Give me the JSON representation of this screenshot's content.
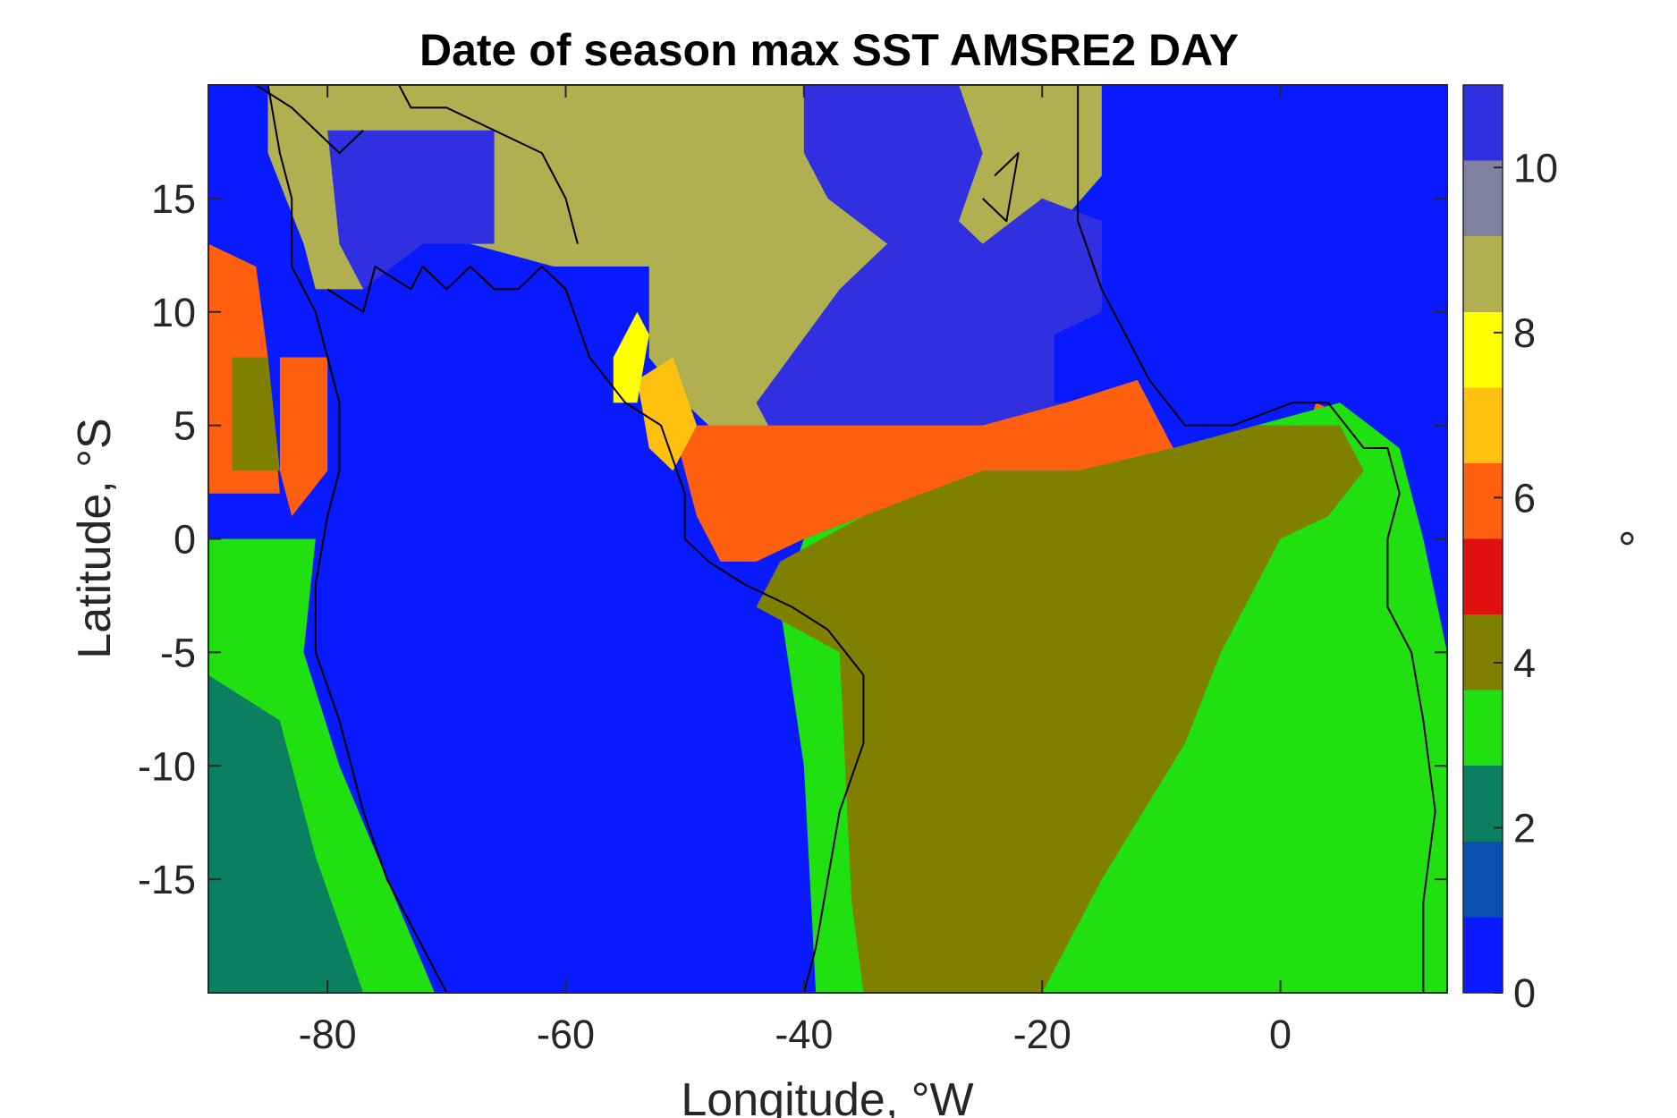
{
  "chart_data": {
    "type": "heatmap",
    "title": "Date of season max SST AMSRE2 DAY",
    "xlabel": "Longitude, °W",
    "ylabel": "Latitude, °S",
    "colorbar_label": "°",
    "xlim": [
      -90,
      14
    ],
    "ylim": [
      -20,
      20
    ],
    "clim": [
      0,
      11
    ],
    "x_ticks": [
      -80,
      -60,
      -40,
      -20,
      0
    ],
    "x_tick_labels": [
      "-80",
      "-60",
      "-40",
      "-20",
      "0"
    ],
    "y_ticks": [
      -15,
      -10,
      -5,
      0,
      5,
      10,
      15
    ],
    "y_tick_labels": [
      "-15",
      "-10",
      "-5",
      "0",
      "5",
      "10",
      "15"
    ],
    "colorbar_ticks": [
      0,
      2,
      4,
      6,
      8,
      10
    ],
    "colorbar_tick_labels": [
      "0",
      "2",
      "4",
      "6",
      "8",
      "10"
    ],
    "colormap": [
      "#0a1aff",
      "#0b4fb3",
      "#0a8060",
      "#20e010",
      "#808000",
      "#e01010",
      "#ff6010",
      "#ffc010",
      "#ffff00",
      "#b0b050",
      "#8080a0",
      "#3030e0"
    ],
    "land_value": 0.9,
    "grid": false,
    "legend": "colorbar-right",
    "regions": [
      {
        "name": "pacific-west-coast-south",
        "value": 2.8,
        "polygon": [
          [
            -90,
            0
          ],
          [
            -81,
            0
          ],
          [
            -82,
            -5
          ],
          [
            -79,
            -10
          ],
          [
            -75,
            -15
          ],
          [
            -71,
            -20
          ],
          [
            -90,
            -20
          ]
        ]
      },
      {
        "name": "pacific-southwest-dark",
        "value": 2.2,
        "polygon": [
          [
            -90,
            -6
          ],
          [
            -84,
            -8
          ],
          [
            -81,
            -14
          ],
          [
            -77,
            -20
          ],
          [
            -90,
            -20
          ]
        ]
      },
      {
        "name": "pacific-north-red",
        "value": 5.6,
        "polygon": [
          [
            -90,
            13
          ],
          [
            -86,
            12
          ],
          [
            -85,
            8
          ],
          [
            -84,
            2
          ],
          [
            -90,
            2
          ]
        ]
      },
      {
        "name": "pacific-olive",
        "value": 4.2,
        "polygon": [
          [
            -88,
            8
          ],
          [
            -85,
            8
          ],
          [
            -84,
            3
          ],
          [
            -88,
            3
          ]
        ]
      },
      {
        "name": "pacific-coastal-red",
        "value": 5.6,
        "polygon": [
          [
            -84,
            8
          ],
          [
            -80,
            8
          ],
          [
            -80,
            3
          ],
          [
            -83,
            1
          ],
          [
            -84,
            3
          ]
        ]
      },
      {
        "name": "gulf-gold",
        "value": 8.8,
        "polygon": [
          [
            -85,
            20
          ],
          [
            -51,
            20
          ],
          [
            -51,
            12
          ],
          [
            -61,
            12
          ],
          [
            -68,
            13
          ],
          [
            -74,
            14
          ],
          [
            -77,
            11
          ],
          [
            -81,
            11
          ],
          [
            -82,
            13
          ],
          [
            -85,
            17
          ]
        ]
      },
      {
        "name": "gulf-purple",
        "value": 10.3,
        "polygon": [
          [
            -80,
            18
          ],
          [
            -66,
            18
          ],
          [
            -66,
            13
          ],
          [
            -72,
            13
          ],
          [
            -77,
            11
          ],
          [
            -79,
            13
          ]
        ]
      },
      {
        "name": "atlantic-gold",
        "value": 8.8,
        "polygon": [
          [
            -53,
            20
          ],
          [
            -15,
            20
          ],
          [
            -15,
            16
          ],
          [
            -20,
            13
          ],
          [
            -24,
            9
          ],
          [
            -30,
            8
          ],
          [
            -33,
            6
          ],
          [
            -40,
            5
          ],
          [
            -46,
            4
          ],
          [
            -50,
            6
          ],
          [
            -53,
            8
          ]
        ]
      },
      {
        "name": "atlantic-purple",
        "value": 10.3,
        "polygon": [
          [
            -40,
            20
          ],
          [
            -27,
            20
          ],
          [
            -25,
            17
          ],
          [
            -27,
            14
          ],
          [
            -25,
            13
          ],
          [
            -20,
            15
          ],
          [
            -15,
            14
          ],
          [
            -15,
            8
          ],
          [
            -18,
            6
          ],
          [
            -25,
            5
          ],
          [
            -33,
            5
          ],
          [
            -42,
            4
          ],
          [
            -44,
            6
          ],
          [
            -37,
            11
          ],
          [
            -33,
            13
          ],
          [
            -38,
            15
          ],
          [
            -40,
            17
          ]
        ]
      },
      {
        "name": "bright-blue-patch",
        "value": 0.3,
        "polygon": [
          [
            -19,
            9
          ],
          [
            -15,
            10
          ],
          [
            -15,
            6
          ],
          [
            -19,
            6
          ]
        ]
      },
      {
        "name": "equatorial-red",
        "value": 5.7,
        "polygon": [
          [
            -51,
            5
          ],
          [
            -47,
            5
          ],
          [
            -42,
            5
          ],
          [
            -33,
            5
          ],
          [
            -25,
            5
          ],
          [
            -18,
            6
          ],
          [
            -12,
            7
          ],
          [
            -9,
            4
          ],
          [
            -17,
            3
          ],
          [
            -25,
            3
          ],
          [
            -35,
            1
          ],
          [
            -40,
            0
          ],
          [
            -44,
            -1
          ],
          [
            -47,
            -1
          ],
          [
            -49,
            1
          ]
        ]
      },
      {
        "name": "east-red",
        "value": 5.6,
        "polygon": [
          [
            3,
            6
          ],
          [
            7,
            5
          ],
          [
            8,
            3
          ],
          [
            5,
            2
          ],
          [
            1,
            3
          ]
        ]
      },
      {
        "name": "orange-coast",
        "value": 6.6,
        "polygon": [
          [
            -54,
            7
          ],
          [
            -51,
            8
          ],
          [
            -49,
            5
          ],
          [
            -51,
            3
          ],
          [
            -53,
            4
          ]
        ]
      },
      {
        "name": "yellow-coast",
        "value": 8.0,
        "polygon": [
          [
            -56,
            8
          ],
          [
            -54,
            10
          ],
          [
            -53,
            9
          ],
          [
            -54,
            6
          ],
          [
            -56,
            6
          ]
        ]
      },
      {
        "name": "atlantic-south-green",
        "value": 2.8,
        "polygon": [
          [
            -42,
            -3
          ],
          [
            -40,
            -10
          ],
          [
            -39,
            -20
          ],
          [
            14,
            -20
          ],
          [
            14,
            -5
          ],
          [
            12,
            0
          ],
          [
            10,
            4
          ],
          [
            5,
            6
          ],
          [
            -2,
            5
          ],
          [
            -9,
            4
          ],
          [
            -17,
            3
          ],
          [
            -25,
            3
          ],
          [
            -35,
            1
          ],
          [
            -40,
            0
          ]
        ]
      },
      {
        "name": "atlantic-olive",
        "value": 4.2,
        "polygon": [
          [
            -37,
            -5
          ],
          [
            -36,
            -16
          ],
          [
            -35,
            -20
          ],
          [
            -20,
            -20
          ],
          [
            -15,
            -15
          ],
          [
            -8,
            -9
          ],
          [
            -5,
            -5
          ],
          [
            -2,
            -2
          ],
          [
            0,
            0
          ],
          [
            4,
            1
          ],
          [
            7,
            3
          ],
          [
            5,
            5
          ],
          [
            -2,
            5
          ],
          [
            -9,
            4
          ],
          [
            -17,
            3
          ],
          [
            -25,
            3
          ],
          [
            -35,
            1
          ],
          [
            -42,
            -1
          ],
          [
            -44,
            -3
          ]
        ]
      }
    ],
    "coastlines": [
      [
        [
          -85,
          20
        ],
        [
          -84,
          17
        ],
        [
          -83,
          15
        ],
        [
          -83,
          12
        ],
        [
          -81,
          10
        ],
        [
          -80,
          8
        ],
        [
          -79,
          6
        ],
        [
          -79,
          3
        ],
        [
          -80,
          1
        ],
        [
          -81,
          -2
        ],
        [
          -81,
          -5
        ],
        [
          -79,
          -8
        ],
        [
          -77,
          -12
        ],
        [
          -75,
          -15
        ],
        [
          -72,
          -18
        ],
        [
          -70,
          -20
        ]
      ],
      [
        [
          -80,
          11
        ],
        [
          -77,
          10
        ],
        [
          -76,
          12
        ],
        [
          -73,
          11
        ],
        [
          -72,
          12
        ],
        [
          -70,
          11
        ],
        [
          -68,
          12
        ],
        [
          -66,
          11
        ],
        [
          -64,
          11
        ],
        [
          -62,
          12
        ],
        [
          -60,
          11
        ],
        [
          -58,
          8
        ],
        [
          -55,
          6
        ],
        [
          -52,
          5
        ],
        [
          -50,
          2
        ],
        [
          -50,
          0
        ],
        [
          -48,
          -1
        ],
        [
          -45,
          -2
        ],
        [
          -41,
          -3
        ],
        [
          -38,
          -4
        ],
        [
          -35,
          -6
        ],
        [
          -35,
          -9
        ],
        [
          -37,
          -12
        ],
        [
          -38,
          -15
        ],
        [
          -39,
          -18
        ],
        [
          -40,
          -20
        ]
      ],
      [
        [
          -17,
          20
        ],
        [
          -17,
          16
        ],
        [
          -17,
          14
        ],
        [
          -15,
          11
        ],
        [
          -13,
          9
        ],
        [
          -11,
          7
        ],
        [
          -8,
          5
        ],
        [
          -4,
          5
        ],
        [
          1,
          6
        ],
        [
          4,
          6
        ],
        [
          7,
          4
        ],
        [
          9,
          4
        ],
        [
          10,
          2
        ],
        [
          9,
          0
        ],
        [
          9,
          -3
        ],
        [
          11,
          -5
        ],
        [
          12,
          -8
        ],
        [
          13,
          -12
        ],
        [
          12,
          -16
        ],
        [
          12,
          -20
        ]
      ],
      [
        [
          -77,
          20
        ],
        [
          -74,
          20
        ],
        [
          -73,
          19
        ],
        [
          -70,
          19
        ],
        [
          -66,
          18
        ],
        [
          -62,
          17
        ],
        [
          -60,
          15
        ],
        [
          -59,
          13
        ]
      ],
      [
        [
          -86,
          20
        ],
        [
          -83,
          19
        ],
        [
          -79,
          17
        ],
        [
          -77,
          18
        ]
      ],
      [
        [
          -24,
          16
        ],
        [
          -22,
          17
        ],
        [
          -23,
          14
        ],
        [
          -25,
          15
        ]
      ]
    ]
  }
}
